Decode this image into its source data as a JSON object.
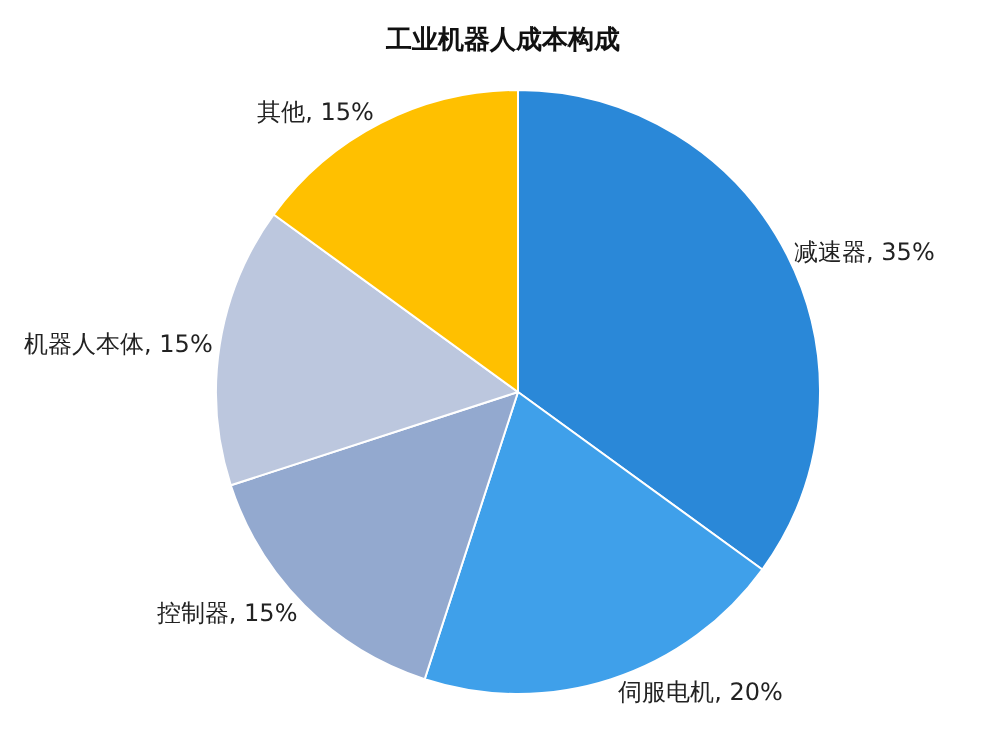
{
  "chart_data": {
    "type": "pie",
    "title": "工业机器人成本构成",
    "categories": [
      "减速器",
      "伺服电机",
      "控制器",
      "机器人本体",
      "其他"
    ],
    "values": [
      35,
      20,
      15,
      15,
      15
    ],
    "value_labels": [
      "35%",
      "20%",
      "15%",
      "15%",
      "15%"
    ],
    "colors": [
      "#2a88d8",
      "#3fa0ea",
      "#93a9cf",
      "#bcc7de",
      "#ffc000"
    ],
    "legend": false
  }
}
